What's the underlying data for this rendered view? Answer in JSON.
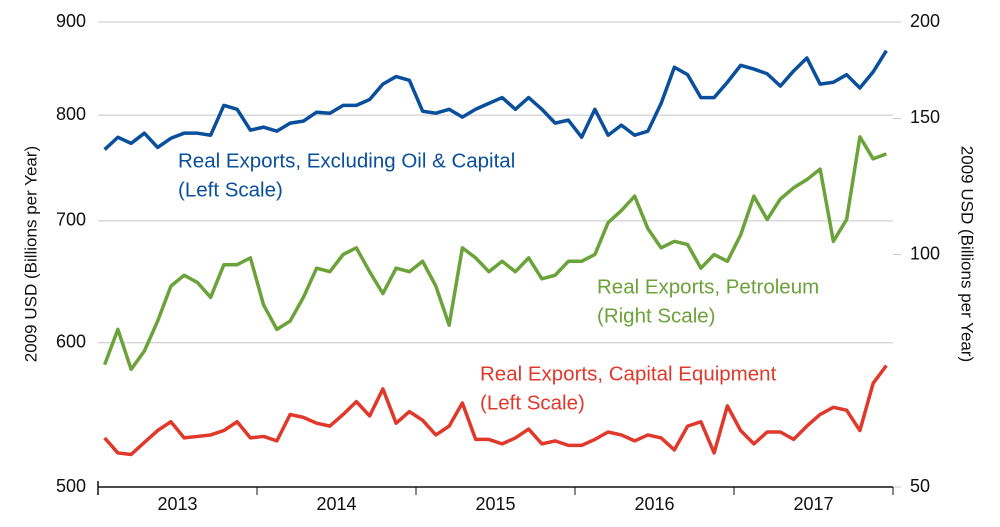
{
  "chart_data": {
    "type": "line",
    "y_label": "2009 USD (Billions per Year)",
    "y2_label": "2009 USD (Billions per Year)",
    "log_scale": true,
    "grid": true,
    "categories": [
      null,
      null,
      null,
      null,
      null,
      null,
      "2013",
      null,
      null,
      null,
      null,
      null,
      null,
      null,
      null,
      null,
      null,
      null,
      "2014",
      null,
      null,
      null,
      null,
      null,
      null,
      null,
      null,
      null,
      null,
      null,
      "2015",
      null,
      null,
      null,
      null,
      null,
      null,
      null,
      null,
      null,
      null,
      null,
      "2016",
      null,
      null,
      null,
      null,
      null,
      null,
      null,
      null,
      null,
      null,
      null,
      "2017",
      null,
      null,
      null,
      null,
      null
    ],
    "ylim": [
      500,
      900
    ],
    "yticks": [
      500,
      600,
      700,
      800,
      900
    ],
    "y2lim": [
      50,
      200
    ],
    "y2ticks": [
      50,
      100,
      150,
      200
    ],
    "series": [
      {
        "name": "Real Exports, Excluding Oil & Capital",
        "scale_note": "(Left Scale)",
        "color": "#0a4f9c",
        "values": [
          766,
          778,
          772,
          782,
          768,
          777,
          782,
          782,
          780,
          810,
          806,
          785,
          788,
          784,
          792,
          794,
          803,
          802,
          810,
          810,
          816,
          832,
          840,
          836,
          804,
          802,
          806,
          798,
          806,
          812,
          818,
          806,
          818,
          806,
          792,
          795,
          778,
          806,
          780,
          790,
          780,
          784,
          812,
          850,
          842,
          818,
          818,
          834,
          852,
          848,
          843,
          830,
          846,
          860,
          832,
          834,
          842,
          828,
          845,
          868
        ]
      },
      {
        "name": "Real Exports, Petroleum",
        "scale_note": "(Right Scale)",
        "color": "#6ca23a",
        "axis": "y2",
        "values": [
          72,
          80,
          71,
          75,
          82,
          91,
          94,
          92,
          88,
          97,
          97,
          99,
          86,
          80,
          82,
          88,
          96,
          95,
          100,
          102,
          95,
          89,
          96,
          95,
          98,
          91,
          81,
          102,
          99,
          95,
          98,
          95,
          99,
          93,
          94,
          98,
          98,
          100,
          110,
          114,
          119,
          108,
          102,
          104,
          103,
          96,
          100,
          98,
          106,
          119,
          111,
          118,
          122,
          125,
          129,
          104,
          111,
          142,
          133,
          135
        ]
      },
      {
        "name": "Real Exports, Capital Equipment",
        "scale_note": "(Left Scale)",
        "color": "#e0392b",
        "values": [
          532,
          522,
          521,
          529,
          537,
          543,
          532,
          533,
          534,
          537,
          543,
          532,
          533,
          530,
          548,
          546,
          542,
          540,
          548,
          557,
          547,
          566,
          542,
          550,
          544,
          534,
          540,
          556,
          531,
          531,
          528,
          532,
          538,
          528,
          530,
          527,
          527,
          531,
          536,
          534,
          530,
          534,
          532,
          524,
          540,
          543,
          522,
          554,
          537,
          528,
          536,
          536,
          531,
          540,
          548,
          553,
          551,
          537,
          570,
          583
        ]
      }
    ]
  }
}
